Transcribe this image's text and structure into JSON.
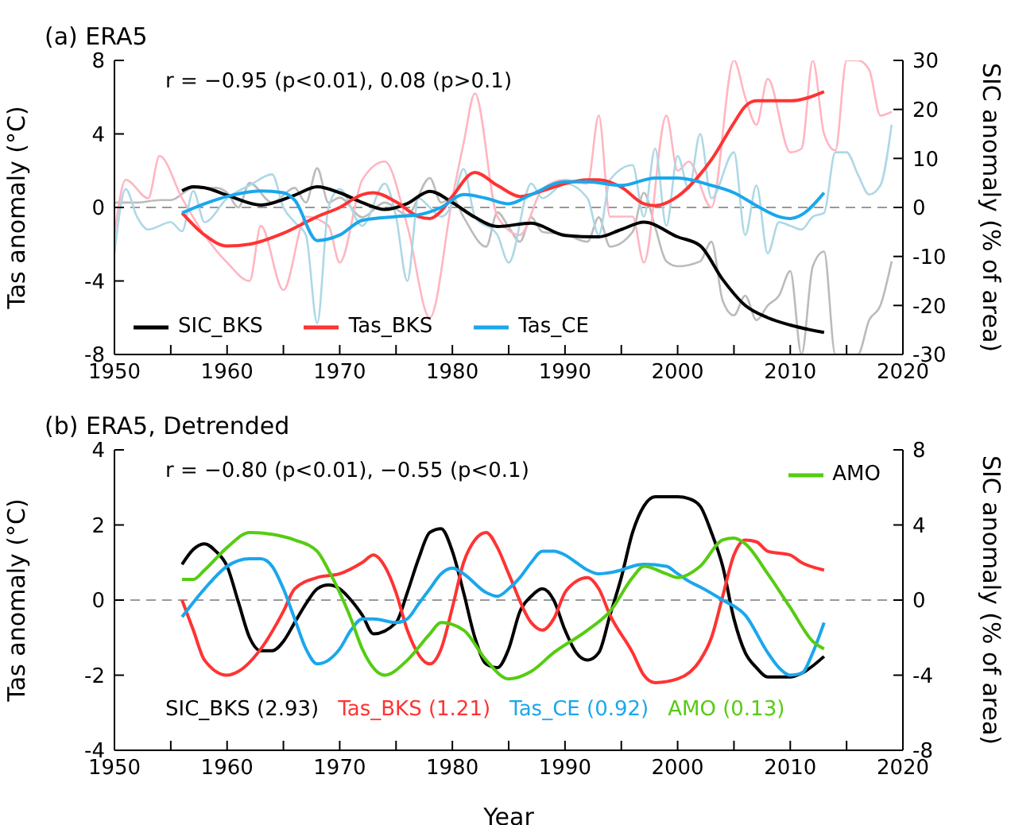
{
  "chart_data": [
    {
      "type": "line",
      "title": "(a) ERA5",
      "ylabel": "Tas anomaly (°C)",
      "y2label": "SIC anomaly (% of area)",
      "xlim": [
        1950,
        2020
      ],
      "xticks": [
        1950,
        {
          "value": 1955,
          "label": null
        },
        1960,
        {
          "value": 1965,
          "label": null
        },
        1970,
        {
          "value": 1975,
          "label": null
        },
        1980,
        {
          "value": 1985,
          "label": null
        },
        1990,
        {
          "value": 1995,
          "label": null
        },
        2000,
        {
          "value": 2005,
          "label": null
        },
        2010,
        {
          "value": 2015,
          "label": null
        },
        2020
      ],
      "ylim": [
        -8,
        8
      ],
      "yticks": [
        -8,
        -4,
        0,
        4,
        8
      ],
      "y2lim": [
        -30,
        30
      ],
      "y2ticks": [
        -30,
        -20,
        -10,
        0,
        10,
        20,
        30
      ],
      "grid": false,
      "legend": "bottom left",
      "marker": "none",
      "line_style": "solid",
      "annotations": [
        "r = −0.95 (p<0.01), 0.08 (p>0.1)"
      ],
      "ref_lines": [
        {
          "axis": "y",
          "value": 0,
          "color": "#999999",
          "line_style": "dashed"
        }
      ],
      "series": [
        {
          "color": "#bbbbbb",
          "axis": "y2",
          "x": [
            1950,
            1952,
            1954,
            1955,
            1957,
            1959,
            1960,
            1961,
            1962,
            1964,
            1966,
            1967,
            1968,
            1969,
            1970,
            1972,
            1974,
            1976,
            1978,
            1979,
            1980,
            1981,
            1983,
            1984,
            1985,
            1986,
            1987,
            1988,
            1990,
            1992,
            1993,
            1994,
            1996,
            1997,
            1998,
            1999,
            2000,
            2002,
            2003,
            2004,
            2005,
            2006,
            2007,
            2008,
            2009,
            2010,
            2011,
            2012,
            2013,
            2014,
            2015,
            2016,
            2017,
            2018,
            2019
          ],
          "values": [
            1,
            1,
            1.5,
            1.5,
            4,
            4,
            3,
            0,
            5,
            1,
            4,
            1,
            8,
            1,
            2,
            -2,
            1,
            -1.5,
            6,
            1,
            2,
            -2,
            -8,
            -1,
            -4,
            -7,
            -2,
            -5,
            -5.5,
            -7,
            -2,
            -8,
            -5,
            3,
            -4,
            -11,
            -12,
            -11,
            -7,
            -19,
            -22,
            -18,
            -23,
            -20,
            -18,
            -13,
            -30,
            -12,
            -9,
            -30,
            -30,
            -30,
            -23,
            -20,
            -11
          ]
        },
        {
          "color": "#ffb6c1",
          "x": [
            1950,
            1951,
            1953,
            1954,
            1956,
            1958,
            1960,
            1962,
            1963,
            1965,
            1967,
            1969,
            1970,
            1972,
            1974,
            1976,
            1978,
            1980,
            1981,
            1982,
            1984,
            1986,
            1988,
            1990,
            1992,
            1993,
            1994,
            1996,
            1997,
            1999,
            2000,
            2001,
            2003,
            2005,
            2006,
            2007,
            2008,
            2010,
            2011,
            2012,
            2013,
            2014,
            2015,
            2016,
            2017,
            2018,
            2019
          ],
          "values": [
            -1.5,
            1.5,
            0.5,
            2.8,
            0.5,
            -1.5,
            -3,
            -4,
            -1,
            -4.5,
            -0.5,
            -1,
            -3,
            1.5,
            2.5,
            -1,
            -6,
            0.5,
            3.5,
            6.2,
            -0.5,
            -1.5,
            1,
            1.5,
            1.3,
            5,
            -0.5,
            -0.5,
            -3,
            5,
            2,
            2.5,
            0,
            8,
            6,
            4.5,
            7,
            3,
            3.2,
            8,
            4,
            3.1,
            8,
            8,
            7.5,
            5,
            5.2
          ]
        },
        {
          "color": "#add8e6",
          "x": [
            1950,
            1951,
            1952,
            1953,
            1955,
            1956,
            1957,
            1958,
            1960,
            1962,
            1964,
            1965,
            1966,
            1967,
            1968,
            1969,
            1970,
            1972,
            1974,
            1975,
            1976,
            1977,
            1978,
            1979,
            1980,
            1981,
            1982,
            1984,
            1985,
            1987,
            1988,
            1990,
            1992,
            1993,
            1994,
            1996,
            1997,
            1998,
            1999,
            2000,
            2001,
            2002,
            2003,
            2005,
            2006,
            2007,
            2008,
            2009,
            2010,
            2011,
            2012,
            2013,
            2014,
            2015,
            2016,
            2017,
            2018,
            2019
          ],
          "values": [
            -2.5,
            1,
            -0.5,
            -1.2,
            -0.8,
            -1.3,
            0.9,
            -0.8,
            0.5,
            1.2,
            1.8,
            0,
            -0.8,
            -1.5,
            -6.3,
            0,
            1,
            -1,
            1.3,
            -0.5,
            -4,
            0.5,
            0,
            -0.5,
            0.2,
            2.1,
            -0.5,
            -1.5,
            -3,
            1.3,
            0.5,
            1.3,
            0.5,
            -1.5,
            1.5,
            2.3,
            -0.5,
            3.2,
            -1,
            2.8,
            1,
            4,
            0.5,
            3,
            -1.5,
            1.2,
            -2.5,
            -0.8,
            -1,
            -1.2,
            -0.5,
            -0.3,
            3,
            3,
            1.8,
            0.7,
            1.2,
            4.5
          ]
        },
        {
          "name": "SIC_BKS",
          "color": "#000000",
          "axis": "y2",
          "x": [
            1956,
            1957,
            1958,
            1960,
            1963,
            1966,
            1968,
            1970,
            1972,
            1974,
            1976,
            1978,
            1980,
            1982,
            1984,
            1987,
            1990,
            1993,
            1995,
            1997,
            2000,
            2002,
            2004,
            2006,
            2008,
            2010,
            2013
          ],
          "values": [
            3.4,
            4.2,
            4,
            2.5,
            0.5,
            2.5,
            4.2,
            3,
            1,
            -0.4,
            0.8,
            3.3,
            1,
            -2,
            -3.9,
            -3.2,
            -5.7,
            -6,
            -4.5,
            -3,
            -6,
            -7.8,
            -14.7,
            -20,
            -22.5,
            -24,
            -25.5
          ]
        },
        {
          "name": "Tas_BKS",
          "color": "#ff3333",
          "x": [
            1956,
            1958,
            1960,
            1962,
            1965,
            1968,
            1970,
            1972,
            1973,
            1975,
            1977,
            1978,
            1979,
            1980,
            1982,
            1984,
            1986,
            1988,
            1990,
            1992,
            1993,
            1995,
            1997,
            1998,
            2000,
            2002,
            2003,
            2005,
            2006,
            2007,
            2010,
            2013
          ],
          "values": [
            -0.3,
            -1.5,
            -2.1,
            -2,
            -1.4,
            -0.5,
            0,
            0.7,
            0.8,
            0.3,
            -0.5,
            -0.6,
            -0.2,
            0.6,
            1.9,
            1.2,
            0.6,
            0.9,
            1.3,
            1.5,
            1.5,
            1.1,
            0.2,
            0.1,
            0.6,
            1.8,
            2.6,
            4.6,
            5.5,
            5.8,
            5.8,
            6.3
          ]
        },
        {
          "name": "Tas_CE",
          "color": "#1aa7ec",
          "x": [
            1956,
            1958,
            1960,
            1963,
            1965,
            1966,
            1968,
            1970,
            1972,
            1975,
            1977,
            1979,
            1981,
            1983,
            1985,
            1987,
            1990,
            1992,
            1995,
            1998,
            2000,
            2003,
            2005,
            2007,
            2009,
            2010,
            2011,
            2013
          ],
          "values": [
            -0.3,
            0.2,
            0.6,
            0.9,
            0.8,
            0.4,
            -1.8,
            -1.5,
            -0.7,
            -0.5,
            -0.4,
            0,
            0.7,
            0.5,
            0.2,
            0.7,
            1.4,
            1.4,
            1.2,
            1.6,
            1.6,
            1.2,
            0.8,
            0.1,
            -0.5,
            -0.6,
            -0.4,
            0.8
          ]
        }
      ]
    },
    {
      "type": "line",
      "title": "(b) ERA5, Detrended",
      "xlabel": "Year",
      "ylabel": "Tas anomaly (°C)",
      "y2label": "SIC anomaly (% of area)",
      "xlim": [
        1950,
        2020
      ],
      "xticks": [
        1950,
        {
          "value": 1955,
          "label": null
        },
        1960,
        {
          "value": 1965,
          "label": null
        },
        1970,
        {
          "value": 1975,
          "label": null
        },
        1980,
        {
          "value": 1985,
          "label": null
        },
        1990,
        {
          "value": 1995,
          "label": null
        },
        2000,
        {
          "value": 2005,
          "label": null
        },
        2010,
        {
          "value": 2015,
          "label": null
        },
        2020
      ],
      "ylim": [
        -4,
        4
      ],
      "yticks": [
        -4,
        -2,
        0,
        2,
        4
      ],
      "y2lim": [
        -8,
        8
      ],
      "y2ticks": [
        -8,
        -4,
        0,
        4,
        8
      ],
      "grid": false,
      "legend": "top right",
      "marker": "none",
      "line_style": "solid",
      "annotations": [
        "r = −0.80 (p<0.01), −0.55 (p<0.1)",
        "SIC_BKS (2.93)",
        "Tas_BKS (1.21)",
        "Tas_CE (0.92)",
        "AMO (0.13)"
      ],
      "ref_lines": [
        {
          "axis": "y",
          "value": 0,
          "color": "#999999",
          "line_style": "dashed"
        }
      ],
      "series": [
        {
          "color": "#000000",
          "axis": "y2",
          "x": [
            1956,
            1957,
            1958,
            1959,
            1960,
            1961,
            1962,
            1963,
            1964,
            1965,
            1966,
            1967,
            1968,
            1969,
            1970,
            1971,
            1972,
            1973,
            1975,
            1976,
            1977,
            1978,
            1979,
            1980,
            1981,
            1982,
            1983,
            1984,
            1985,
            1986,
            1987,
            1988,
            1989,
            1990,
            1991,
            1992,
            1993,
            1994,
            1995,
            1996,
            1997,
            1998,
            2000,
            2001,
            2002,
            2003,
            2004,
            2005,
            2006,
            2007,
            2008,
            2010,
            2011,
            2013
          ],
          "values": [
            1.9,
            2.7,
            3,
            2.6,
            1.8,
            -0.1,
            -2,
            -2.7,
            -2.7,
            -2.2,
            -1.2,
            -0.2,
            0.6,
            0.8,
            0.6,
            0,
            -0.8,
            -1.8,
            -1.2,
            0.4,
            2.2,
            3.6,
            3.8,
            2.6,
            0.4,
            -2,
            -3.4,
            -3.6,
            -2.6,
            -0.6,
            0.2,
            0.6,
            0,
            -1.6,
            -2.8,
            -3.2,
            -2.8,
            -0.8,
            1.2,
            3.6,
            5,
            5.5,
            5.5,
            5.4,
            5,
            3.6,
            1.8,
            -1,
            -2.8,
            -3.6,
            -4.1,
            -4.1,
            -3.9,
            -3
          ]
        },
        {
          "color": "#ff3333",
          "x": [
            1956,
            1957,
            1958,
            1960,
            1961,
            1963,
            1965,
            1966,
            1968,
            1970,
            1972,
            1973,
            1974,
            1975,
            1976,
            1978,
            1979,
            1980,
            1981,
            1982,
            1983,
            1984,
            1985,
            1987,
            1988,
            1989,
            1990,
            1991,
            1992,
            1993,
            1994,
            1996,
            1997,
            1998,
            2000,
            2002,
            2003,
            2004,
            2005,
            2006,
            2007,
            2008,
            2010,
            2011,
            2013
          ],
          "values": [
            0,
            -0.8,
            -1.6,
            -2,
            -1.9,
            -1.3,
            -0.3,
            0.3,
            0.6,
            0.7,
            1,
            1.2,
            0.9,
            0.2,
            -0.8,
            -1.7,
            -1.3,
            -0.2,
            1,
            1.6,
            1.8,
            1.4,
            0.7,
            -0.6,
            -0.8,
            -0.5,
            0.2,
            0.5,
            0.6,
            0.3,
            -0.4,
            -1.4,
            -2,
            -2.2,
            -2.1,
            -1.6,
            -1,
            0.1,
            1.2,
            1.6,
            1.55,
            1.3,
            1.2,
            1,
            0.8
          ]
        },
        {
          "color": "#1aa7ec",
          "x": [
            1956,
            1958,
            1960,
            1962,
            1963,
            1964,
            1965,
            1966,
            1967,
            1968,
            1969,
            1970,
            1971,
            1972,
            1973,
            1975,
            1976,
            1977,
            1978,
            1979,
            1980,
            1981,
            1983,
            1984,
            1985,
            1986,
            1987,
            1988,
            1989,
            1990,
            1991,
            1992,
            1993,
            1995,
            1996,
            1997,
            1999,
            2000,
            2001,
            2002,
            2004,
            2006,
            2008,
            2009,
            2010,
            2011,
            2012,
            2013
          ],
          "values": [
            -0.45,
            0.3,
            0.9,
            1.1,
            1.1,
            0.9,
            0.3,
            -0.5,
            -1.3,
            -1.7,
            -1.6,
            -1.3,
            -0.8,
            -0.5,
            -0.5,
            -0.6,
            -0.5,
            -0.1,
            0.3,
            0.7,
            0.85,
            0.7,
            0.2,
            0.1,
            0.3,
            0.6,
            1,
            1.3,
            1.3,
            1.2,
            1,
            0.8,
            0.7,
            0.8,
            0.9,
            0.95,
            0.9,
            0.7,
            0.5,
            0.35,
            0,
            -0.4,
            -1.4,
            -1.8,
            -2,
            -1.95,
            -1.4,
            -0.6
          ]
        },
        {
          "name": "AMO",
          "color": "#55cc11",
          "x": [
            1956,
            1957,
            1958,
            1960,
            1962,
            1964,
            1966,
            1968,
            1969,
            1971,
            1972,
            1974,
            1976,
            1978,
            1979,
            1981,
            1983,
            1985,
            1987,
            1989,
            1992,
            1994,
            1996,
            1997,
            1999,
            2000,
            2002,
            2004,
            2005,
            2006,
            2008,
            2010,
            2012,
            2013
          ],
          "values": [
            0.55,
            0.55,
            0.8,
            1.4,
            1.8,
            1.75,
            1.6,
            1.3,
            0.8,
            -0.5,
            -1.3,
            -2,
            -1.6,
            -0.9,
            -0.6,
            -0.8,
            -1.6,
            -2.1,
            -1.9,
            -1.4,
            -0.8,
            -0.3,
            0.6,
            0.9,
            0.7,
            0.6,
            0.9,
            1.6,
            1.65,
            1.5,
            0.7,
            -0.2,
            -1.1,
            -1.3
          ]
        }
      ]
    }
  ]
}
